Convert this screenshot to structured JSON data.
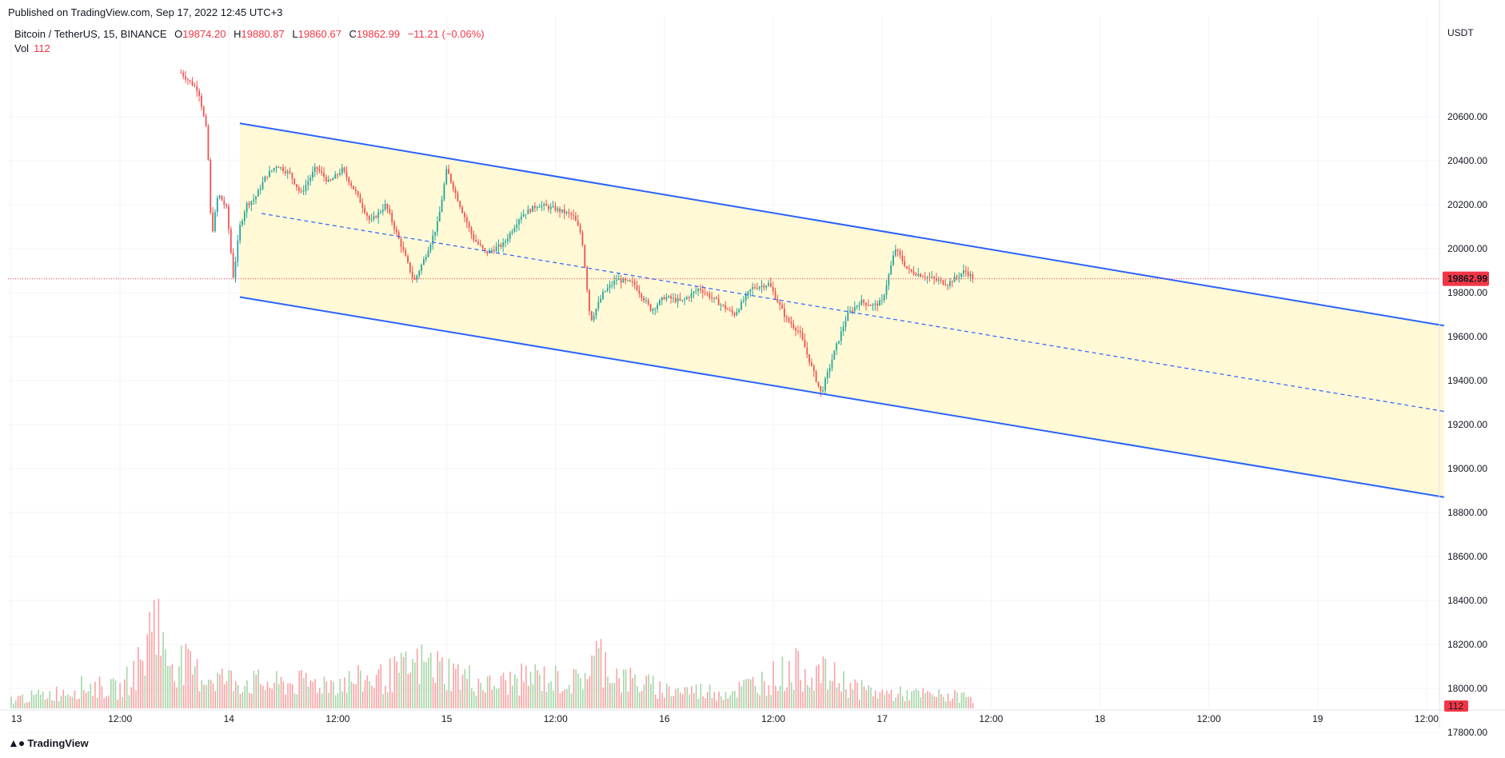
{
  "header": {
    "published": "Published on TradingView.com, Sep 17, 2022 12:45 UTC+3"
  },
  "legend": {
    "symbol": "Bitcoin / TetherUS, 15, BINANCE",
    "open_label": "O",
    "open": "19874.20",
    "high_label": "H",
    "high": "19880.87",
    "low_label": "L",
    "low": "19860.67",
    "close_label": "C",
    "close": "19862.99",
    "change": "−11.21 (−0.06%)",
    "vol_label": "Vol",
    "vol": "112"
  },
  "footer": {
    "brand": "TradingView",
    "brand_icon": "tradingview-logo-icon"
  },
  "colors": {
    "up": "#26a69a",
    "down": "#ef5350",
    "channel": "#2962ff",
    "channel_fill": "#fff9d6",
    "price_badge": "#f23645",
    "grid": "#f0f3fa"
  },
  "chart_data": {
    "type": "candlestick",
    "symbol": "BTCUSDT",
    "interval": "15",
    "currency": "USDT",
    "last_price": "19862.99",
    "last_volume": "112",
    "ylim": [
      17750,
      20750
    ],
    "y_ticks": [
      "20600.00",
      "20400.00",
      "20200.00",
      "20000.00",
      "19800.00",
      "19600.00",
      "19400.00",
      "19200.00",
      "19000.00",
      "18800.00",
      "18600.00",
      "18400.00",
      "18200.00",
      "18000.00",
      "17800.00"
    ],
    "x_ticks": [
      "13",
      "12:00",
      "14",
      "12:00",
      "15",
      "12:00",
      "16",
      "12:00",
      "17",
      "12:00",
      "18",
      "12:00",
      "19",
      "12:00"
    ],
    "x_tick_days": [
      0,
      0.5,
      1,
      1.5,
      2,
      2.5,
      3,
      3.5,
      4,
      4.5,
      5,
      5.5,
      6,
      6.5
    ],
    "price_path": [
      [
        0.78,
        20800
      ],
      [
        0.86,
        20720
      ],
      [
        0.9,
        20520
      ],
      [
        0.92,
        20050
      ],
      [
        0.95,
        20250
      ],
      [
        0.99,
        20180
      ],
      [
        1.02,
        19870
      ],
      [
        1.05,
        20100
      ],
      [
        1.08,
        20200
      ],
      [
        1.12,
        20230
      ],
      [
        1.17,
        20330
      ],
      [
        1.22,
        20380
      ],
      [
        1.28,
        20340
      ],
      [
        1.33,
        20250
      ],
      [
        1.4,
        20370
      ],
      [
        1.46,
        20300
      ],
      [
        1.52,
        20360
      ],
      [
        1.58,
        20260
      ],
      [
        1.65,
        20120
      ],
      [
        1.72,
        20200
      ],
      [
        1.8,
        19990
      ],
      [
        1.85,
        19850
      ],
      [
        1.9,
        19960
      ],
      [
        1.96,
        20120
      ],
      [
        2.0,
        20360
      ],
      [
        2.06,
        20200
      ],
      [
        2.12,
        20050
      ],
      [
        2.18,
        19980
      ],
      [
        2.26,
        20020
      ],
      [
        2.34,
        20150
      ],
      [
        2.42,
        20200
      ],
      [
        2.5,
        20180
      ],
      [
        2.58,
        20150
      ],
      [
        2.62,
        20060
      ],
      [
        2.66,
        19670
      ],
      [
        2.72,
        19800
      ],
      [
        2.78,
        19860
      ],
      [
        2.86,
        19840
      ],
      [
        2.94,
        19720
      ],
      [
        3.0,
        19780
      ],
      [
        3.08,
        19760
      ],
      [
        3.16,
        19820
      ],
      [
        3.24,
        19760
      ],
      [
        3.32,
        19700
      ],
      [
        3.4,
        19820
      ],
      [
        3.48,
        19840
      ],
      [
        3.56,
        19680
      ],
      [
        3.62,
        19620
      ],
      [
        3.68,
        19450
      ],
      [
        3.72,
        19340
      ],
      [
        3.78,
        19530
      ],
      [
        3.84,
        19700
      ],
      [
        3.9,
        19760
      ],
      [
        3.96,
        19740
      ],
      [
        4.0,
        19760
      ],
      [
        4.06,
        20000
      ],
      [
        4.12,
        19900
      ],
      [
        4.18,
        19880
      ],
      [
        4.24,
        19860
      ],
      [
        4.3,
        19840
      ],
      [
        4.34,
        19870
      ],
      [
        4.38,
        19900
      ],
      [
        4.42,
        19862.99
      ]
    ],
    "volume_ylim": [
      0,
      1800
    ],
    "volume_path": [
      [
        0.0,
        120
      ],
      [
        0.2,
        200
      ],
      [
        0.35,
        300
      ],
      [
        0.5,
        250
      ],
      [
        0.62,
        700
      ],
      [
        0.66,
        1550
      ],
      [
        0.7,
        700
      ],
      [
        0.78,
        600
      ],
      [
        0.86,
        450
      ],
      [
        0.92,
        420
      ],
      [
        1.0,
        380
      ],
      [
        1.2,
        320
      ],
      [
        1.5,
        350
      ],
      [
        1.7,
        400
      ],
      [
        1.9,
        600
      ],
      [
        2.0,
        500
      ],
      [
        2.2,
        300
      ],
      [
        2.4,
        420
      ],
      [
        2.6,
        350
      ],
      [
        2.7,
        700
      ],
      [
        2.8,
        400
      ],
      [
        3.0,
        250
      ],
      [
        3.3,
        220
      ],
      [
        3.5,
        420
      ],
      [
        3.6,
        520
      ],
      [
        3.7,
        480
      ],
      [
        3.8,
        380
      ],
      [
        3.9,
        250
      ],
      [
        4.0,
        200
      ],
      [
        4.2,
        180
      ],
      [
        4.42,
        150
      ]
    ],
    "channel": {
      "upper_start": [
        1.05,
        20570
      ],
      "upper_end": [
        6.58,
        19650
      ],
      "lower_start": [
        1.05,
        19780
      ],
      "lower_end": [
        6.58,
        18870
      ],
      "mid_start": [
        1.15,
        20160
      ],
      "mid_end": [
        6.58,
        19260
      ]
    }
  }
}
